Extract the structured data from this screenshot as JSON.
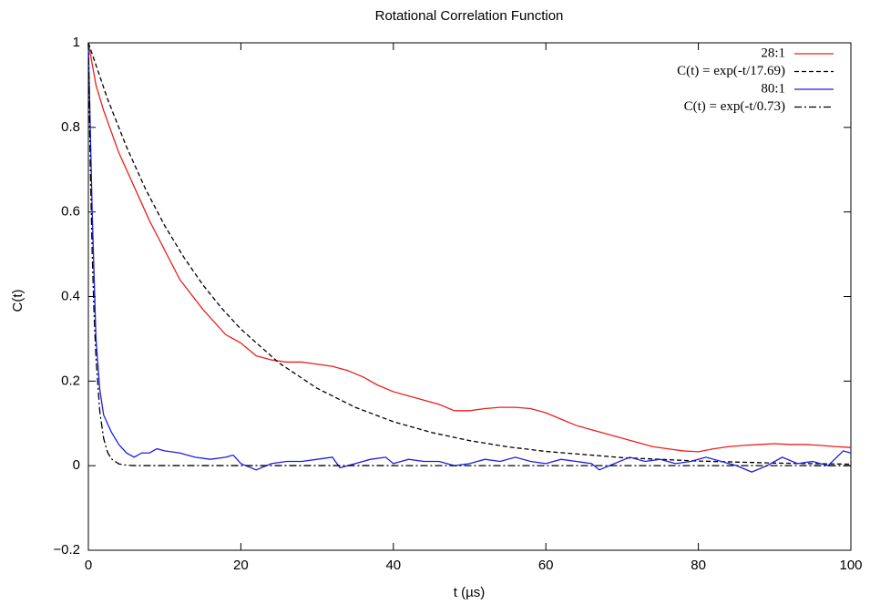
{
  "chart_data": {
    "type": "line",
    "title": "Rotational Correlation Function",
    "x_label": "t (µs)",
    "y_label": "C(t)",
    "xlim": [
      0,
      100
    ],
    "xticks": [
      0,
      20,
      40,
      60,
      80,
      100
    ],
    "ylim": [
      -0.2,
      1
    ],
    "yticks": [
      {
        "value": -0.2,
        "label": "−0.2"
      },
      0,
      0.2,
      0.4,
      0.6,
      0.8,
      1
    ],
    "legend": "top-right",
    "series": [
      {
        "name": "28:1",
        "color": "#e8201e",
        "linestyle": "solid",
        "x": [
          0,
          1,
          2,
          4,
          6,
          8,
          10,
          12,
          15,
          18,
          20,
          22,
          24,
          26,
          28,
          30,
          32,
          34,
          36,
          38,
          40,
          42,
          44,
          46,
          48,
          50,
          52,
          54,
          56,
          58,
          60,
          62,
          64,
          66,
          68,
          70,
          72,
          74,
          76,
          78,
          80,
          82,
          84,
          86,
          88,
          90,
          92,
          94,
          96,
          98,
          100
        ],
        "values": [
          1,
          0.9,
          0.84,
          0.74,
          0.66,
          0.58,
          0.51,
          0.44,
          0.37,
          0.31,
          0.29,
          0.26,
          0.25,
          0.245,
          0.245,
          0.24,
          0.235,
          0.225,
          0.21,
          0.19,
          0.175,
          0.165,
          0.155,
          0.145,
          0.13,
          0.13,
          0.135,
          0.138,
          0.138,
          0.135,
          0.125,
          0.11,
          0.095,
          0.085,
          0.075,
          0.065,
          0.055,
          0.045,
          0.04,
          0.035,
          0.033,
          0.04,
          0.045,
          0.048,
          0.05,
          0.052,
          0.05,
          0.05,
          0.048,
          0.045,
          0.043
        ]
      },
      {
        "name": "C(t) = exp(-t/17.69)",
        "color": "#000000",
        "linestyle": "dashed",
        "x": [
          0,
          2.5,
          5,
          7.5,
          10,
          12.5,
          15,
          17.5,
          20,
          25,
          30,
          35,
          40,
          45,
          50,
          55,
          60,
          70,
          80,
          90,
          100
        ],
        "values": [
          1,
          0.868,
          0.754,
          0.654,
          0.568,
          0.4933,
          0.428,
          0.372,
          0.323,
          0.243,
          0.183,
          0.138,
          0.104,
          0.0785,
          0.0592,
          0.0446,
          0.0337,
          0.0191,
          0.0109,
          0.0062,
          0.0035
        ]
      },
      {
        "name": "80:1",
        "color": "#1e1ee8",
        "linestyle": "solid",
        "x": [
          0,
          0.5,
          1,
          1.5,
          2,
          3,
          4,
          5,
          6,
          7,
          8,
          9,
          10,
          12,
          14,
          16,
          18,
          19,
          20,
          22,
          24,
          26,
          28,
          30,
          32,
          33,
          35,
          37,
          39,
          40,
          42,
          44,
          46,
          48,
          50,
          52,
          54,
          56,
          58,
          60,
          62,
          64,
          66,
          67,
          69,
          71,
          73,
          75,
          77,
          79,
          81,
          83,
          85,
          87,
          89,
          91,
          93,
          95,
          97,
          99,
          100
        ],
        "values": [
          1,
          0.6,
          0.3,
          0.18,
          0.12,
          0.08,
          0.05,
          0.03,
          0.02,
          0.03,
          0.03,
          0.04,
          0.035,
          0.03,
          0.02,
          0.015,
          0.02,
          0.025,
          0.005,
          -0.01,
          0.005,
          0.01,
          0.01,
          0.015,
          0.02,
          -0.005,
          0.005,
          0.015,
          0.02,
          0.005,
          0.015,
          0.01,
          0.01,
          0,
          0.005,
          0.015,
          0.01,
          0.02,
          0.01,
          0.005,
          0.015,
          0.01,
          0.005,
          -0.01,
          0.005,
          0.02,
          0.01,
          0.015,
          0.005,
          0.01,
          0.02,
          0.01,
          0,
          -0.015,
          0,
          0.02,
          0.005,
          0.01,
          0,
          0.035,
          0.03
        ]
      },
      {
        "name": "C(t) = exp(-t/0.73)",
        "color": "#000000",
        "linestyle": "dashdot",
        "x": [
          0,
          0.25,
          0.5,
          0.75,
          1,
          1.5,
          2,
          2.5,
          3,
          4,
          5,
          6,
          100
        ],
        "values": [
          1,
          0.71,
          0.504,
          0.358,
          0.254,
          0.128,
          0.0646,
          0.0325,
          0.0164,
          0.0042,
          0.00106,
          0.00027,
          0
        ]
      }
    ]
  }
}
